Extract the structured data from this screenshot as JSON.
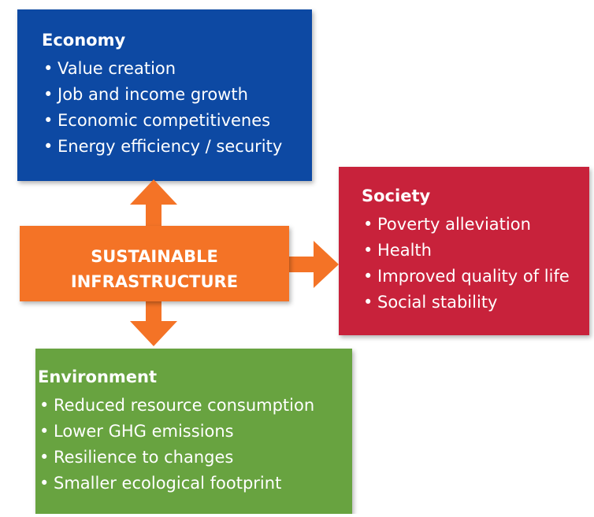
{
  "center": {
    "lines": [
      "SUSTAINABLE",
      "INFRASTRUCTURE"
    ]
  },
  "boxes": [
    {
      "title": "Economy",
      "items": [
        "Value creation",
        "Job and income growth",
        "Economic competitivenes",
        "Energy efficiency / security"
      ]
    },
    {
      "title": "Society",
      "items": [
        "Poverty alleviation",
        "Health",
        "Improved quality of life",
        "Social stability"
      ]
    },
    {
      "title": "Environment",
      "items": [
        "Reduced resource consumption",
        "Lower GHG emissions",
        "Resilience to changes",
        "Smaller ecological footprint"
      ]
    }
  ]
}
